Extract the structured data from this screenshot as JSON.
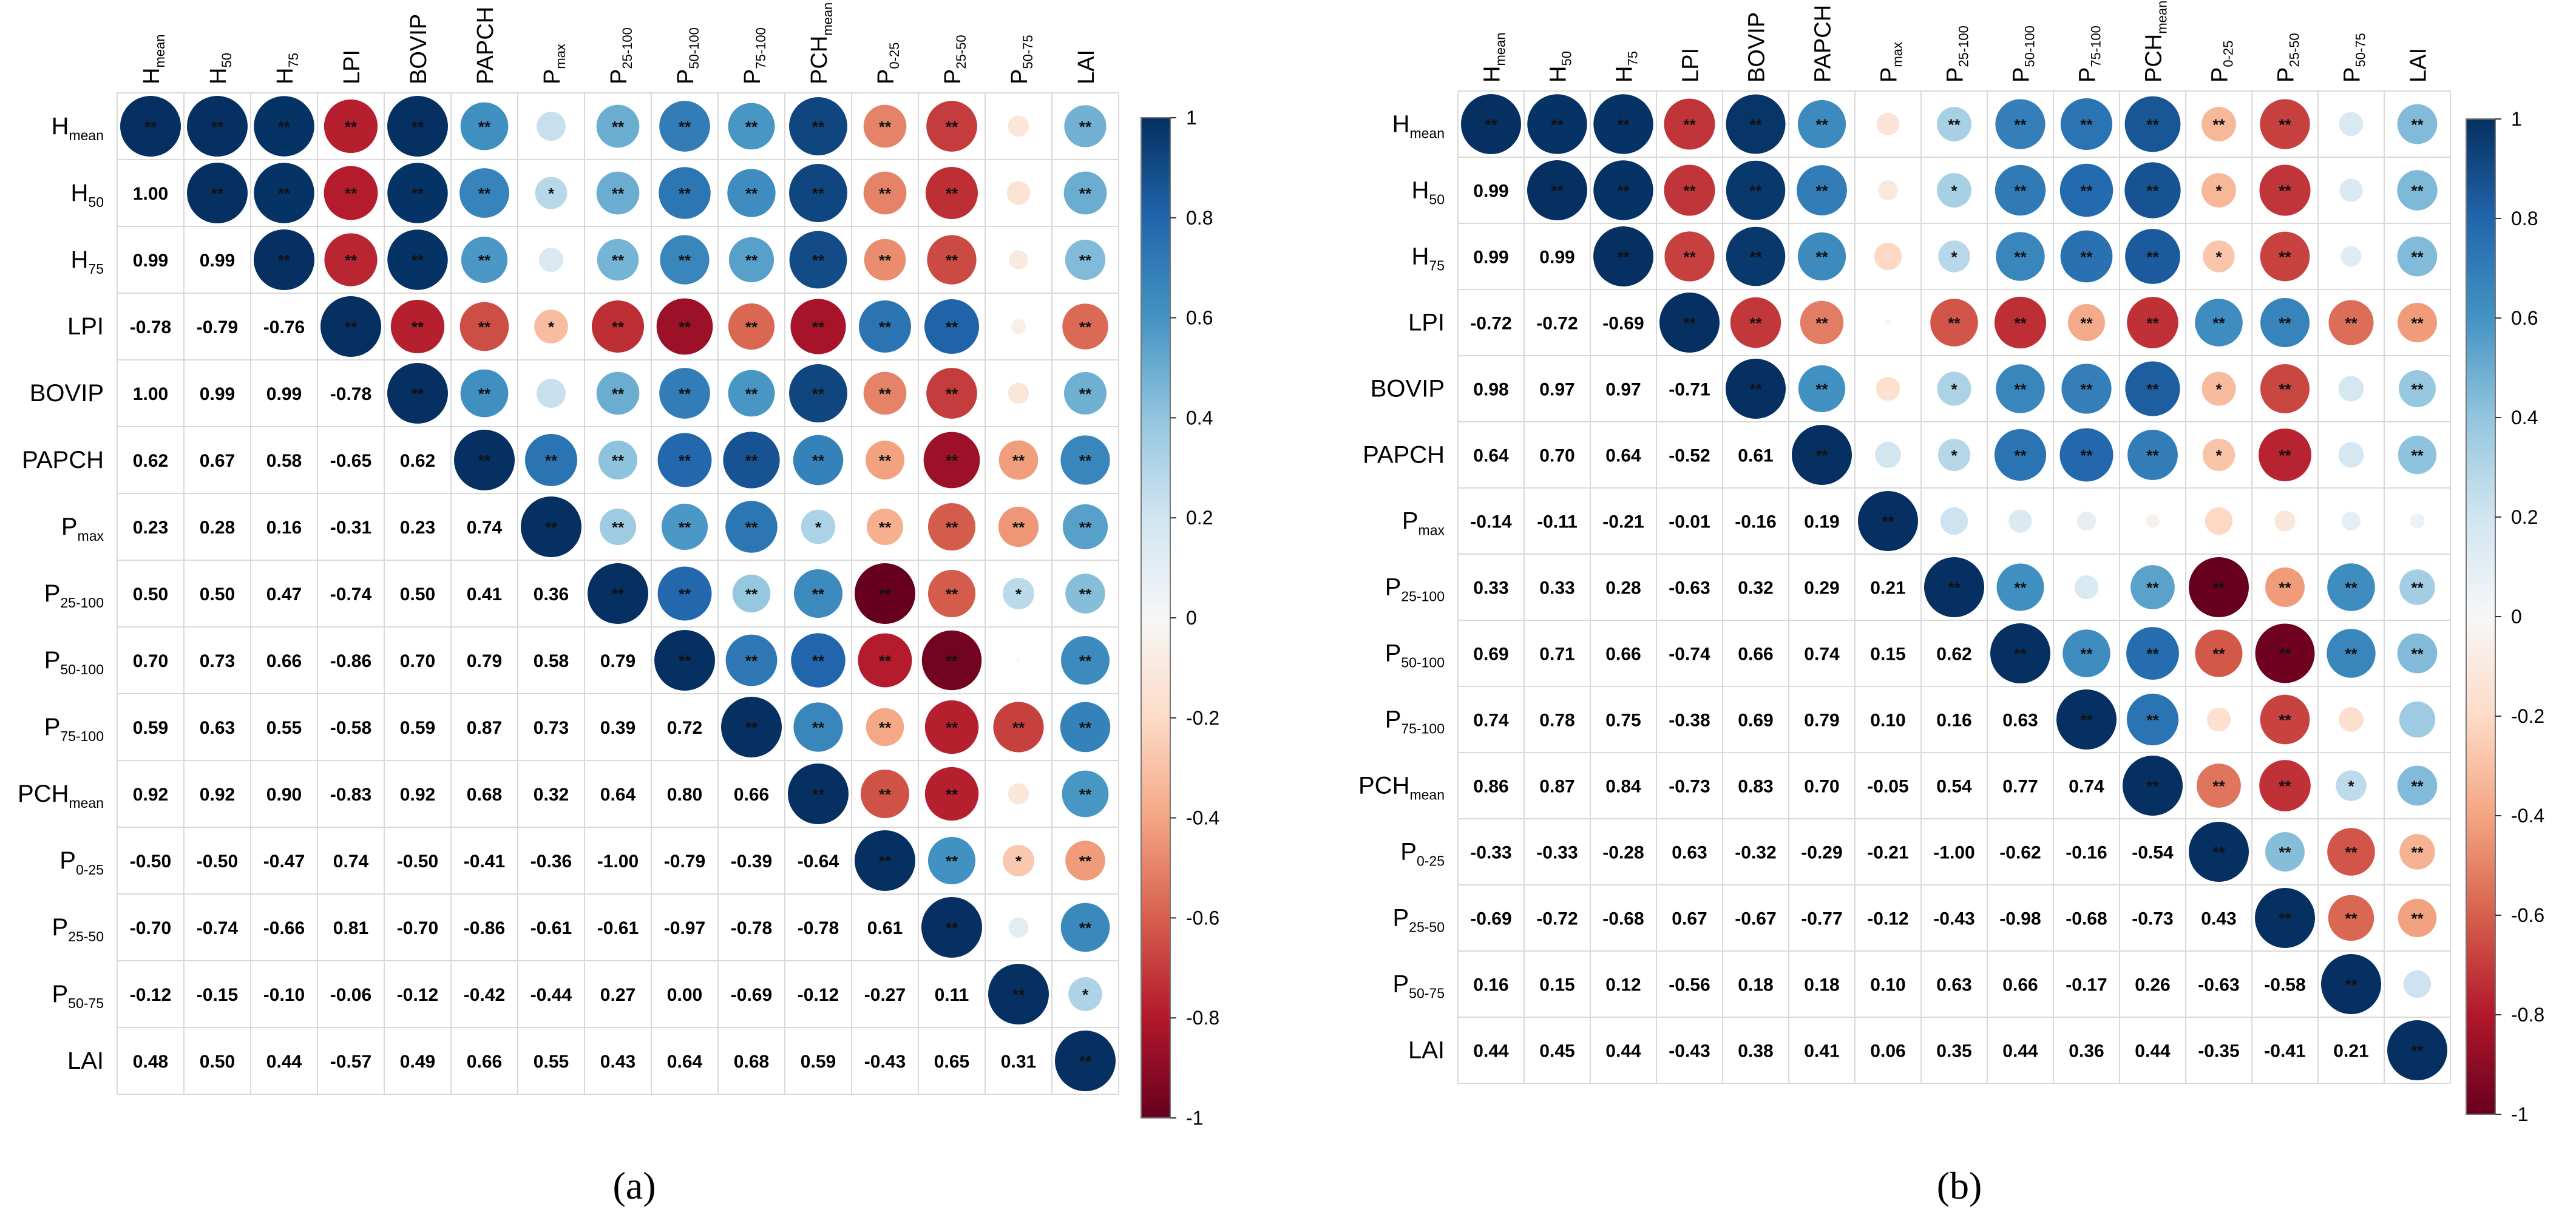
{
  "panel_labels": [
    "(a)",
    "(b)"
  ],
  "colorbar_ticks": [
    "1",
    "0.8",
    "0.6",
    "0.4",
    "0.2",
    "0",
    "-0.2",
    "-0.4",
    "-0.6",
    "-0.8",
    "-1"
  ],
  "colors": {
    "pos": "#053061",
    "mid": "#ffffff",
    "neg": "#67001f",
    "grid": "#d9d9d9"
  },
  "chart_data": [
    {
      "type": "heatmap",
      "panel": "(a)",
      "variables": [
        {
          "base": "H",
          "sub": "mean"
        },
        {
          "base": "H",
          "sub": "50"
        },
        {
          "base": "H",
          "sub": "75"
        },
        {
          "base": "LPI",
          "sub": ""
        },
        {
          "base": "BOVIP",
          "sub": ""
        },
        {
          "base": "PAPCH",
          "sub": ""
        },
        {
          "base": "P",
          "sub": "max"
        },
        {
          "base": "P",
          "sub": "25-100"
        },
        {
          "base": "P",
          "sub": "50-100"
        },
        {
          "base": "P",
          "sub": "75-100"
        },
        {
          "base": "PCH",
          "sub": "mean"
        },
        {
          "base": "P",
          "sub": "0-25"
        },
        {
          "base": "P",
          "sub": "25-50"
        },
        {
          "base": "P",
          "sub": "50-75"
        },
        {
          "base": "LAI",
          "sub": ""
        }
      ],
      "lower_values": [
        [],
        [
          1.0
        ],
        [
          0.99,
          0.99
        ],
        [
          -0.78,
          -0.79,
          -0.76
        ],
        [
          1.0,
          0.99,
          0.99,
          -0.78
        ],
        [
          0.62,
          0.67,
          0.58,
          -0.65,
          0.62
        ],
        [
          0.23,
          0.28,
          0.16,
          -0.31,
          0.23,
          0.74
        ],
        [
          0.5,
          0.5,
          0.47,
          -0.74,
          0.5,
          0.41,
          0.36
        ],
        [
          0.7,
          0.73,
          0.66,
          -0.86,
          0.7,
          0.79,
          0.58,
          0.79
        ],
        [
          0.59,
          0.63,
          0.55,
          -0.58,
          0.59,
          0.87,
          0.73,
          0.39,
          0.72
        ],
        [
          0.92,
          0.92,
          0.9,
          -0.83,
          0.92,
          0.68,
          0.32,
          0.64,
          0.8,
          0.66
        ],
        [
          -0.5,
          -0.5,
          -0.47,
          0.74,
          -0.5,
          -0.41,
          -0.36,
          -1.0,
          -0.79,
          -0.39,
          -0.64
        ],
        [
          -0.7,
          -0.74,
          -0.66,
          0.81,
          -0.7,
          -0.86,
          -0.61,
          -0.61,
          -0.97,
          -0.78,
          -0.78,
          0.61
        ],
        [
          -0.12,
          -0.15,
          -0.1,
          -0.06,
          -0.12,
          -0.42,
          -0.44,
          0.27,
          0.0,
          -0.69,
          -0.12,
          -0.27,
          0.11
        ],
        [
          0.48,
          0.5,
          0.44,
          -0.57,
          0.49,
          0.66,
          0.55,
          0.43,
          0.64,
          0.68,
          0.59,
          -0.43,
          0.65,
          0.31
        ]
      ],
      "upper_values": [
        [
          1.0,
          1.0,
          0.99,
          -0.78,
          1.0,
          0.62,
          0.23,
          0.5,
          0.7,
          0.59,
          0.92,
          -0.5,
          -0.7,
          -0.12,
          0.48
        ],
        [
          1.0,
          0.99,
          -0.79,
          0.99,
          0.67,
          0.28,
          0.5,
          0.73,
          0.63,
          0.92,
          -0.5,
          -0.74,
          -0.15,
          0.5
        ],
        [
          1.0,
          -0.76,
          0.99,
          0.58,
          0.16,
          0.47,
          0.66,
          0.55,
          0.9,
          -0.47,
          -0.66,
          -0.1,
          0.44
        ],
        [
          1.0,
          -0.78,
          -0.65,
          -0.31,
          -0.74,
          -0.86,
          -0.58,
          -0.83,
          0.74,
          0.81,
          -0.06,
          -0.57
        ],
        [
          1.0,
          0.62,
          0.23,
          0.5,
          0.7,
          0.59,
          0.92,
          -0.5,
          -0.7,
          -0.12,
          0.49
        ],
        [
          1.0,
          0.74,
          0.41,
          0.79,
          0.87,
          0.68,
          -0.41,
          -0.86,
          -0.42,
          0.66
        ],
        [
          1.0,
          0.36,
          0.58,
          0.73,
          0.32,
          -0.36,
          -0.61,
          -0.44,
          0.55
        ],
        [
          1.0,
          0.79,
          0.39,
          0.64,
          -1.0,
          -0.61,
          0.27,
          0.43
        ],
        [
          1.0,
          0.72,
          0.8,
          -0.79,
          -0.97,
          0.0,
          0.64
        ],
        [
          1.0,
          0.66,
          -0.39,
          -0.78,
          -0.69,
          0.68
        ],
        [
          1.0,
          -0.64,
          -0.78,
          -0.12,
          0.59
        ],
        [
          1.0,
          0.61,
          -0.27,
          -0.43
        ],
        [
          1.0,
          0.11,
          0.65
        ],
        [
          1.0,
          0.31
        ],
        [
          1.0
        ]
      ],
      "upper_stars": [
        [
          "**",
          "**",
          "**",
          "**",
          "**",
          "**",
          "",
          "**",
          "**",
          "**",
          "**",
          "**",
          "**",
          "",
          "**"
        ],
        [
          "**",
          "**",
          "**",
          "**",
          "**",
          "*",
          "**",
          "**",
          "**",
          "**",
          "**",
          "**",
          "",
          "**"
        ],
        [
          "**",
          "**",
          "**",
          "**",
          "",
          "**",
          "**",
          "**",
          "**",
          "**",
          "**",
          "",
          "**"
        ],
        [
          "**",
          "**",
          "**",
          "*",
          "**",
          "**",
          "**",
          "**",
          "**",
          "**",
          "",
          "**"
        ],
        [
          "**",
          "**",
          "",
          "**",
          "**",
          "**",
          "**",
          "**",
          "**",
          "",
          "**"
        ],
        [
          "**",
          "**",
          "**",
          "**",
          "**",
          "**",
          "**",
          "**",
          "**",
          "**"
        ],
        [
          "**",
          "**",
          "**",
          "**",
          "*",
          "**",
          "**",
          "**",
          "**"
        ],
        [
          "**",
          "**",
          "**",
          "**",
          "**",
          "**",
          "*",
          "**"
        ],
        [
          "**",
          "**",
          "**",
          "**",
          "**",
          "",
          "**"
        ],
        [
          "**",
          "**",
          "**",
          "**",
          "**",
          "**"
        ],
        [
          "**",
          "**",
          "**",
          "",
          "**"
        ],
        [
          "**",
          "**",
          "*",
          "**"
        ],
        [
          "**",
          "",
          "**"
        ],
        [
          "**",
          "*"
        ],
        [
          "**"
        ]
      ],
      "colorbar_range": [
        -1,
        1
      ]
    },
    {
      "type": "heatmap",
      "panel": "(b)",
      "variables": [
        {
          "base": "H",
          "sub": "mean"
        },
        {
          "base": "H",
          "sub": "50"
        },
        {
          "base": "H",
          "sub": "75"
        },
        {
          "base": "LPI",
          "sub": ""
        },
        {
          "base": "BOVIP",
          "sub": ""
        },
        {
          "base": "PAPCH",
          "sub": ""
        },
        {
          "base": "P",
          "sub": "max"
        },
        {
          "base": "P",
          "sub": "25-100"
        },
        {
          "base": "P",
          "sub": "50-100"
        },
        {
          "base": "P",
          "sub": "75-100"
        },
        {
          "base": "PCH",
          "sub": "mean"
        },
        {
          "base": "P",
          "sub": "0-25"
        },
        {
          "base": "P",
          "sub": "25-50"
        },
        {
          "base": "P",
          "sub": "50-75"
        },
        {
          "base": "LAI",
          "sub": ""
        }
      ],
      "lower_values": [
        [],
        [
          0.99
        ],
        [
          0.99,
          0.99
        ],
        [
          -0.72,
          -0.72,
          -0.69
        ],
        [
          0.98,
          0.97,
          0.97,
          -0.71
        ],
        [
          0.64,
          0.7,
          0.64,
          -0.52,
          0.61
        ],
        [
          -0.14,
          -0.11,
          -0.21,
          -0.01,
          -0.16,
          0.19
        ],
        [
          0.33,
          0.33,
          0.28,
          -0.63,
          0.32,
          0.29,
          0.21
        ],
        [
          0.69,
          0.71,
          0.66,
          -0.74,
          0.66,
          0.74,
          0.15,
          0.62
        ],
        [
          0.74,
          0.78,
          0.75,
          -0.38,
          0.69,
          0.79,
          0.1,
          0.16,
          0.63
        ],
        [
          0.86,
          0.87,
          0.84,
          -0.73,
          0.83,
          0.7,
          -0.05,
          0.54,
          0.77,
          0.74
        ],
        [
          -0.33,
          -0.33,
          -0.28,
          0.63,
          -0.32,
          -0.29,
          -0.21,
          -1.0,
          -0.62,
          -0.16,
          -0.54
        ],
        [
          -0.69,
          -0.72,
          -0.68,
          0.67,
          -0.67,
          -0.77,
          -0.12,
          -0.43,
          -0.98,
          -0.68,
          -0.73,
          0.43
        ],
        [
          0.16,
          0.15,
          0.12,
          -0.56,
          0.18,
          0.18,
          0.1,
          0.63,
          0.66,
          -0.17,
          0.26,
          -0.63,
          -0.58
        ],
        [
          0.44,
          0.45,
          0.44,
          -0.43,
          0.38,
          0.41,
          0.06,
          0.35,
          0.44,
          0.36,
          0.44,
          -0.35,
          -0.41,
          0.21
        ]
      ],
      "upper_values": [
        [
          1.0,
          0.99,
          0.99,
          -0.72,
          0.98,
          0.64,
          -0.14,
          0.33,
          0.69,
          0.74,
          0.86,
          -0.33,
          -0.69,
          0.16,
          0.44
        ],
        [
          1.0,
          0.99,
          -0.72,
          0.97,
          0.7,
          -0.11,
          0.33,
          0.71,
          0.78,
          0.87,
          -0.33,
          -0.72,
          0.15,
          0.45
        ],
        [
          1.0,
          -0.69,
          0.97,
          0.64,
          -0.21,
          0.28,
          0.66,
          0.75,
          0.84,
          -0.28,
          -0.68,
          0.12,
          0.44
        ],
        [
          1.0,
          -0.71,
          -0.52,
          -0.01,
          -0.63,
          -0.74,
          -0.38,
          -0.73,
          0.63,
          0.67,
          -0.56,
          -0.43
        ],
        [
          1.0,
          0.61,
          -0.16,
          0.32,
          0.66,
          0.69,
          0.83,
          -0.32,
          -0.67,
          0.18,
          0.38
        ],
        [
          1.0,
          0.19,
          0.29,
          0.74,
          0.79,
          0.7,
          -0.29,
          -0.77,
          0.18,
          0.41
        ],
        [
          1.0,
          0.21,
          0.15,
          0.1,
          -0.05,
          -0.21,
          -0.12,
          0.1,
          0.06
        ],
        [
          1.0,
          0.62,
          0.16,
          0.54,
          -1.0,
          -0.43,
          0.63,
          0.35
        ],
        [
          1.0,
          0.63,
          0.77,
          -0.62,
          -0.98,
          0.66,
          0.44
        ],
        [
          1.0,
          0.74,
          -0.16,
          -0.68,
          -0.17,
          0.36
        ],
        [
          1.0,
          -0.54,
          -0.73,
          0.26,
          0.44
        ],
        [
          1.0,
          0.43,
          -0.63,
          -0.35
        ],
        [
          1.0,
          -0.58,
          -0.41
        ],
        [
          1.0,
          0.21
        ],
        [
          1.0
        ]
      ],
      "upper_stars": [
        [
          "**",
          "**",
          "**",
          "**",
          "**",
          "**",
          "",
          "**",
          "**",
          "**",
          "**",
          "**",
          "**",
          "",
          "**"
        ],
        [
          "**",
          "**",
          "**",
          "**",
          "**",
          "",
          "*",
          "**",
          "**",
          "**",
          "*",
          "**",
          "",
          "**"
        ],
        [
          "**",
          "**",
          "**",
          "**",
          "",
          "*",
          "**",
          "**",
          "**",
          "*",
          "**",
          "",
          "**"
        ],
        [
          "**",
          "**",
          "**",
          "",
          "**",
          "**",
          "**",
          "**",
          "**",
          "**",
          "**",
          "**"
        ],
        [
          "**",
          "**",
          "",
          "*",
          "**",
          "**",
          "**",
          "*",
          "**",
          "",
          "**"
        ],
        [
          "**",
          "",
          "*",
          "**",
          "**",
          "**",
          "*",
          "**",
          "",
          "**"
        ],
        [
          "**",
          "",
          "",
          "",
          "",
          "",
          "",
          "",
          ""
        ],
        [
          "**",
          "**",
          "",
          "**",
          "**",
          "**",
          "**",
          "**"
        ],
        [
          "**",
          "**",
          "**",
          "**",
          "**",
          "**",
          "**"
        ],
        [
          "**",
          "**",
          "",
          "**",
          "",
          ""
        ],
        [
          "**",
          "**",
          "**",
          "*",
          "**"
        ],
        [
          "**",
          "**",
          "**",
          "**"
        ],
        [
          "**",
          "**",
          "**"
        ],
        [
          "**",
          ""
        ],
        [
          "**"
        ]
      ],
      "colorbar_range": [
        -1,
        1
      ]
    }
  ]
}
